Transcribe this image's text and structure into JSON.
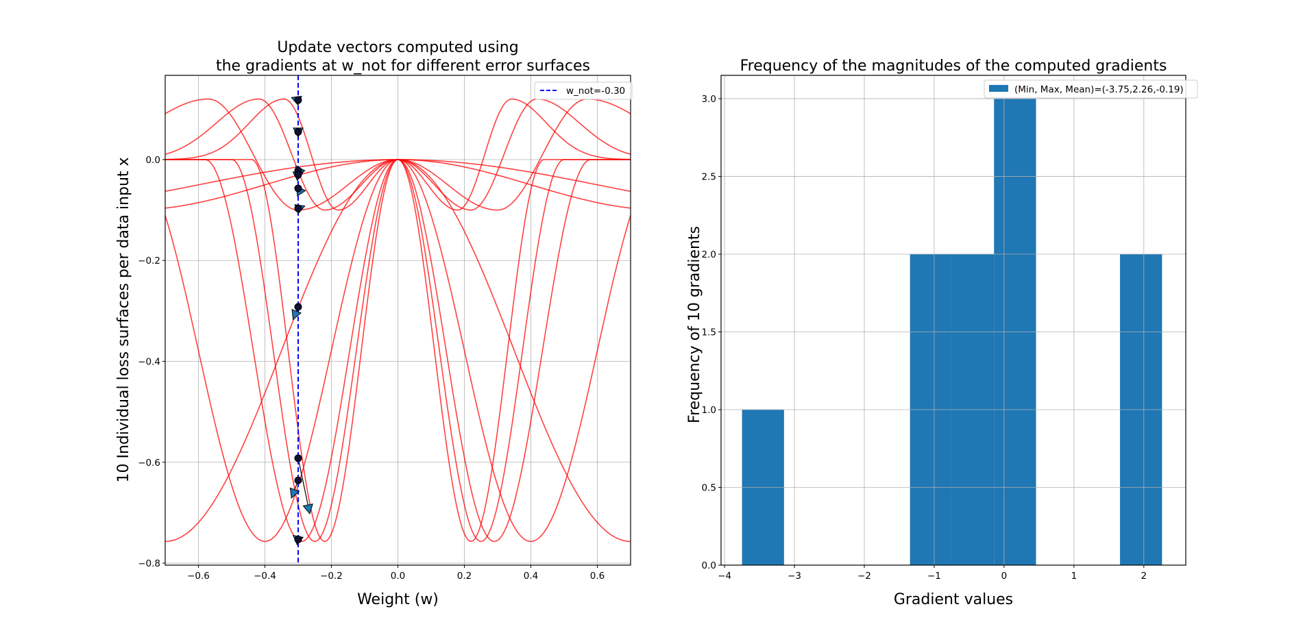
{
  "chart_data": [
    {
      "type": "line",
      "title_line1": "Update vectors computed using",
      "title_line2": "the gradients at w_not for different error surfaces",
      "xlabel": "Weight (w)",
      "ylabel": "10 Individual loss surfaces per data input x",
      "xlim": [
        -0.7,
        0.7
      ],
      "ylim": [
        -0.804,
        0.167
      ],
      "xticks": [
        -0.6,
        -0.4,
        -0.2,
        0.0,
        0.2,
        0.4,
        0.6
      ],
      "xtick_labels": [
        "−0.6",
        "−0.4",
        "−0.2",
        "0.0",
        "0.2",
        "0.4",
        "0.6"
      ],
      "yticks": [
        0.0,
        -0.2,
        -0.4,
        -0.6,
        -0.8
      ],
      "ytick_labels": [
        "0.0",
        "−0.2",
        "−0.4",
        "−0.6",
        "−0.8"
      ],
      "grid": true,
      "legend": {
        "position": "upper right",
        "entries": [
          "w_not=-0.30"
        ]
      },
      "w_not": -0.3,
      "curve_color": "#ff0000",
      "vline_color": "#0000ff",
      "surfaces": [
        {
          "kind": "deep",
          "min_at": 0.22,
          "min_value": -0.757
        },
        {
          "kind": "deep",
          "min_at": 0.25,
          "min_value": -0.757
        },
        {
          "kind": "deep",
          "min_at": 0.29,
          "min_value": -0.757
        },
        {
          "kind": "deep",
          "min_at": 0.4,
          "min_value": -0.757
        },
        {
          "kind": "deep",
          "min_at": 0.7,
          "min_value": -0.757
        },
        {
          "kind": "shallow",
          "min_at": 0.18,
          "min_value": -0.1,
          "max_value": 0.12
        },
        {
          "kind": "shallow",
          "min_at": 0.22,
          "min_value": -0.1,
          "max_value": 0.12
        },
        {
          "kind": "shallow",
          "min_at": 0.3,
          "min_value": -0.1,
          "max_value": 0.12
        },
        {
          "kind": "shallow",
          "min_at": 0.8,
          "min_value": -0.1,
          "max_value": 0.12
        },
        {
          "kind": "shallow",
          "min_at": 1.2,
          "min_value": -0.1,
          "max_value": 0.12
        }
      ],
      "points_at_w_not": [
        {
          "y": 0.118,
          "arrow_dx": -0.02,
          "arrow_dy": 0.005
        },
        {
          "y": 0.055,
          "arrow_dx": 0.0,
          "arrow_dy": -0.01
        },
        {
          "y": -0.022,
          "arrow_dx": 0.02,
          "arrow_dy": 0.0
        },
        {
          "y": -0.03,
          "arrow_dx": 0.015,
          "arrow_dy": 0.005
        },
        {
          "y": -0.057,
          "arrow_dx": -0.005,
          "arrow_dy": 0.005
        },
        {
          "y": -0.097,
          "arrow_dx": 0.02,
          "arrow_dy": 0.005
        },
        {
          "y": -0.292,
          "arrow_dx": -0.015,
          "arrow_dy": -0.025
        },
        {
          "y": -0.592,
          "arrow_dx": 0.035,
          "arrow_dy": -0.11
        },
        {
          "y": -0.636,
          "arrow_dx": -0.02,
          "arrow_dy": -0.035
        },
        {
          "y": -0.753,
          "arrow_dx": -0.015,
          "arrow_dy": 0.008
        }
      ]
    },
    {
      "type": "bar",
      "title": "Frequency of the magnitudes of the computed gradients",
      "xlabel": "Gradient values",
      "ylabel": "Frequency of 10 gradients",
      "xlim": [
        -4.05,
        2.6
      ],
      "ylim": [
        0,
        3.15
      ],
      "xticks": [
        -4,
        -3,
        -2,
        -1,
        0,
        1,
        2
      ],
      "xtick_labels": [
        "−4",
        "−3",
        "−2",
        "−1",
        "0",
        "1",
        "2"
      ],
      "yticks": [
        0.0,
        0.5,
        1.0,
        1.5,
        2.0,
        2.5,
        3.0
      ],
      "ytick_labels": [
        "0.0",
        "0.5",
        "1.0",
        "1.5",
        "2.0",
        "2.5",
        "3.0"
      ],
      "grid": true,
      "bar_color": "#1f77b4",
      "legend": {
        "position": "upper right",
        "entries": [
          "(Min, Max, Mean)=(-3.75,2.26,-0.19)"
        ]
      },
      "bin_edges": [
        -3.75,
        -3.149,
        -2.548,
        -1.947,
        -1.346,
        -0.745,
        -0.144,
        0.457,
        1.058,
        1.659,
        2.26
      ],
      "values": [
        1,
        0,
        0,
        0,
        2,
        2,
        3,
        0,
        0,
        2
      ],
      "stats": {
        "min": -3.75,
        "max": 2.26,
        "mean": -0.19
      }
    }
  ]
}
